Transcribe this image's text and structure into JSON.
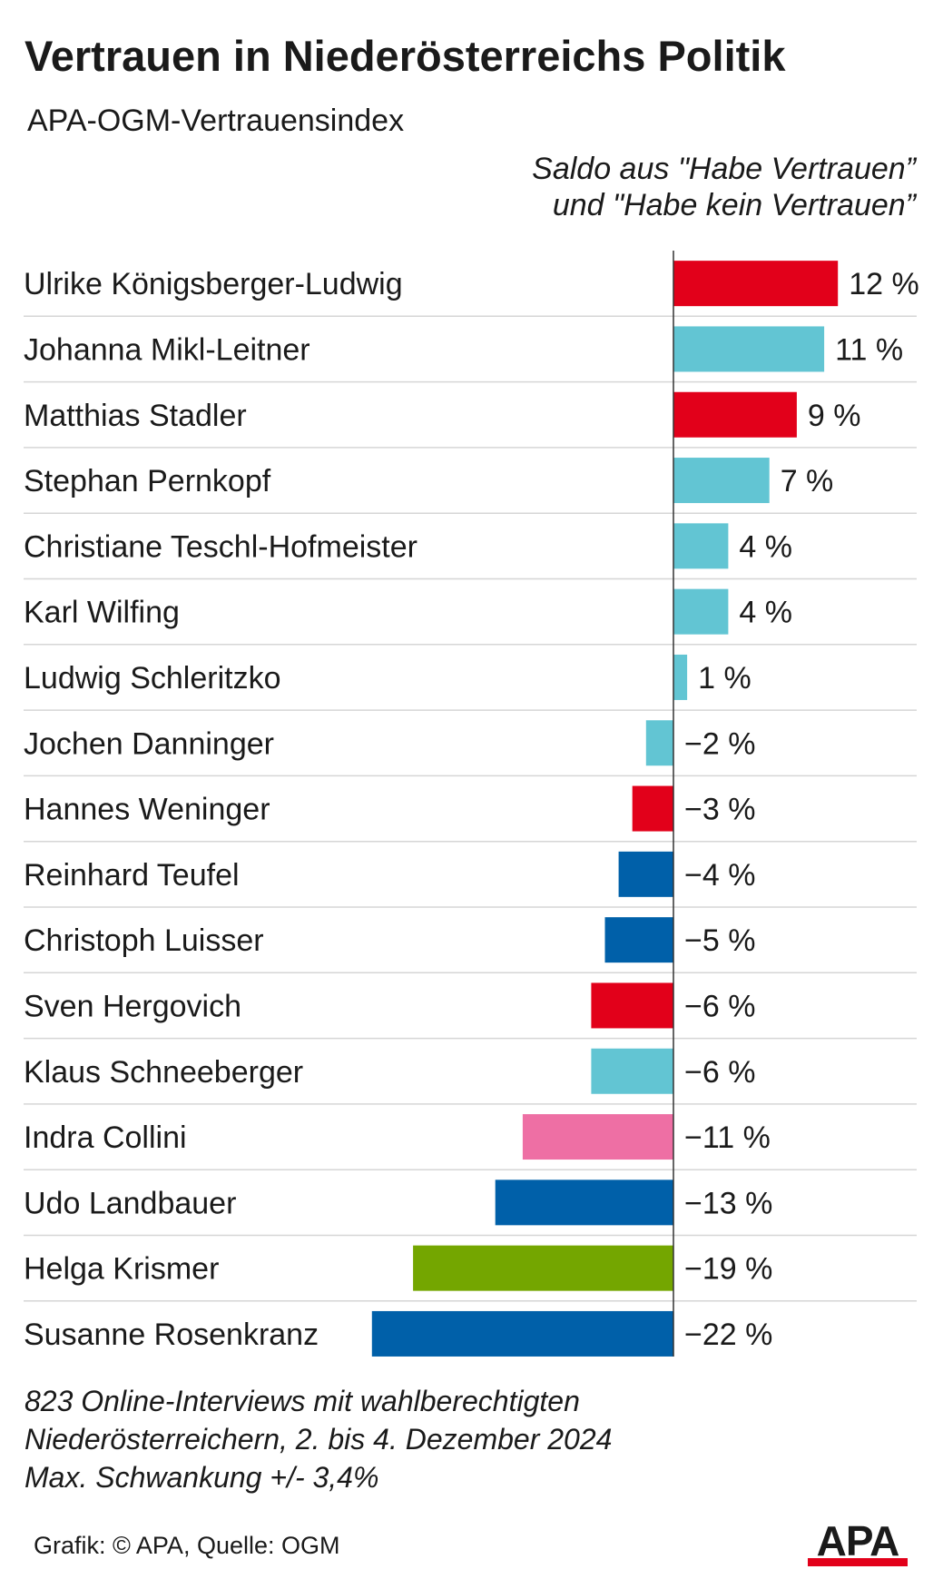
{
  "header": {
    "title": "Vertrauen in Niederösterreichs Politik",
    "subtitle": "APA-OGM-Vertrauensindex",
    "note_line1": "Saldo aus \"Habe Vertrauen”",
    "note_line2": "und \"Habe kein Vertrauen”"
  },
  "chart_data": {
    "type": "bar",
    "orientation": "horizontal",
    "categories": [
      "Ulrike Königsberger-Ludwig",
      "Johanna Mikl-Leitner",
      "Matthias Stadler",
      "Stephan Pernkopf",
      "Christiane Teschl-Hofmeister",
      "Karl Wilfing",
      "Ludwig Schleritzko",
      "Jochen Danninger",
      "Hannes Weninger",
      "Reinhard Teufel",
      "Christoph Luisser",
      "Sven Hergovich",
      "Klaus Schneeberger",
      "Indra Collini",
      "Udo Landbauer",
      "Helga Krismer",
      "Susanne Rosenkranz"
    ],
    "values": [
      12,
      11,
      9,
      7,
      4,
      4,
      1,
      -2,
      -3,
      -4,
      -5,
      -6,
      -6,
      -11,
      -13,
      -19,
      -22
    ],
    "labels": [
      "12 %",
      "11 %",
      "9 %",
      "7 %",
      "4 %",
      "4 %",
      "1 %",
      "−2 %",
      "−3 %",
      "−4 %",
      "−5 %",
      "−6 %",
      "−6 %",
      "−11 %",
      "−13 %",
      "−19 %",
      "−22 %"
    ],
    "colors": [
      "#e2001a",
      "#62c5d3",
      "#e2001a",
      "#62c5d3",
      "#62c5d3",
      "#62c5d3",
      "#62c5d3",
      "#62c5d3",
      "#e2001a",
      "#0060a9",
      "#0060a9",
      "#e2001a",
      "#62c5d3",
      "#ee6fa4",
      "#0060a9",
      "#74a600",
      "#0060a9"
    ],
    "xlim": [
      -22,
      12
    ],
    "grid": false
  },
  "colors": {
    "axis": "#333333",
    "row_divider": "#d6d6d6",
    "brand_red": "#e2001a"
  },
  "footer": {
    "line1": "823 Online-Interviews mit wahlberechtigten",
    "line2": "Niederösterreichern, 2. bis 4. Dezember 2024",
    "line3": "Max. Schwankung +/- 3,4%",
    "credit": "Grafik: © APA, Quelle: OGM",
    "logo_text": "APA"
  }
}
